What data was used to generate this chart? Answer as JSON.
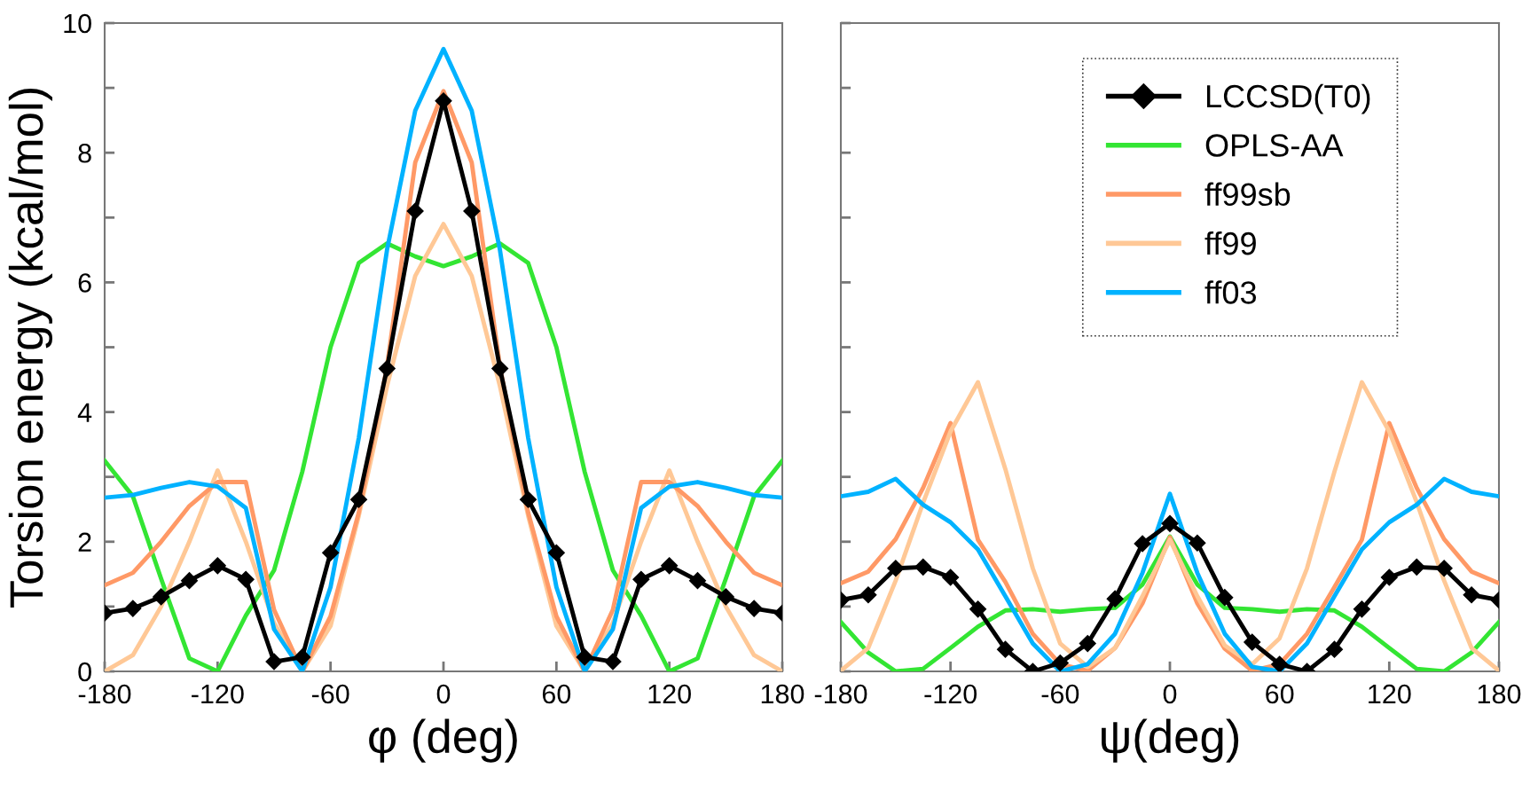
{
  "chart_data": [
    {
      "type": "line",
      "xlabel": "φ (deg)",
      "ylabel": "Torsion energy (kcal/mol)",
      "x": [
        -180,
        -165,
        -150,
        -135,
        -120,
        -105,
        -90,
        -75,
        -60,
        -45,
        -30,
        -15,
        0,
        15,
        30,
        45,
        60,
        75,
        90,
        105,
        120,
        135,
        150,
        165,
        180
      ],
      "xlim": [
        -180,
        180
      ],
      "xticks": [
        -180,
        -120,
        -60,
        0,
        60,
        120,
        180
      ],
      "ylim": [
        0,
        10
      ],
      "yticks": [
        0,
        {
          "value": 1,
          "label": null
        },
        2,
        {
          "value": 3,
          "label": null
        },
        4,
        {
          "value": 5,
          "label": null
        },
        6,
        {
          "value": 7,
          "label": null
        },
        8,
        {
          "value": 9,
          "label": null
        },
        10
      ],
      "grid": false,
      "legend": false,
      "line_style": "solid",
      "series": [
        {
          "color": "#33e533",
          "marker": "none",
          "values": [
            3.25,
            2.7,
            1.43,
            0.2,
            0.0,
            0.86,
            1.56,
            3.08,
            5.0,
            6.3,
            6.6,
            6.4,
            6.25,
            6.4,
            6.6,
            6.3,
            5.0,
            3.08,
            1.56,
            0.86,
            0.0,
            0.2,
            1.43,
            2.7,
            3.25
          ]
        },
        {
          "color": "#ffc896",
          "marker": "none",
          "values": [
            0.0,
            0.25,
            1.0,
            2.0,
            3.1,
            2.0,
            0.75,
            0.0,
            0.7,
            2.4,
            4.4,
            6.1,
            6.9,
            6.1,
            4.4,
            2.4,
            0.7,
            0.0,
            0.75,
            2.0,
            3.1,
            2.0,
            1.0,
            0.25,
            0.0
          ]
        },
        {
          "color": "#ff9966",
          "marker": "none",
          "values": [
            1.33,
            1.52,
            2.0,
            2.55,
            2.92,
            2.92,
            0.95,
            0.0,
            0.85,
            2.45,
            4.7,
            7.85,
            8.95,
            7.85,
            4.7,
            2.45,
            0.85,
            0.0,
            0.95,
            2.92,
            2.92,
            2.55,
            2.0,
            1.52,
            1.33
          ]
        },
        {
          "color": "#00b2ff",
          "marker": "none",
          "values": [
            2.68,
            2.72,
            2.83,
            2.92,
            2.85,
            2.52,
            0.65,
            0.0,
            1.3,
            3.6,
            6.5,
            8.65,
            9.6,
            8.65,
            6.5,
            3.6,
            1.3,
            0.0,
            0.65,
            2.52,
            2.85,
            2.92,
            2.83,
            2.72,
            2.68
          ]
        },
        {
          "color": "#000000",
          "marker": "diamond",
          "values": [
            0.9,
            0.97,
            1.15,
            1.4,
            1.63,
            1.42,
            0.15,
            0.22,
            1.83,
            2.65,
            4.67,
            7.1,
            8.8,
            7.1,
            4.67,
            2.65,
            1.83,
            0.22,
            0.15,
            1.42,
            1.63,
            1.4,
            1.15,
            0.97,
            0.9
          ]
        }
      ]
    },
    {
      "type": "line",
      "xlabel": "ψ(deg)",
      "x": [
        -180,
        -165,
        -150,
        -135,
        -120,
        -105,
        -90,
        -75,
        -60,
        -45,
        -30,
        -15,
        0,
        15,
        30,
        45,
        60,
        75,
        90,
        105,
        120,
        135,
        150,
        165,
        180
      ],
      "xlim": [
        -180,
        180
      ],
      "xticks": [
        -180,
        -120,
        -60,
        0,
        60,
        120,
        180
      ],
      "ylim": [
        0,
        10
      ],
      "yticks": [
        0,
        1,
        2,
        3,
        4,
        5,
        6,
        7,
        8,
        9,
        10
      ],
      "tick_labels": "x",
      "grid": false,
      "legend": "top right",
      "line_style": "solid",
      "series": [
        {
          "name": "LCCSD(T0)",
          "color": "#000000",
          "marker": "diamond",
          "values": [
            1.1,
            1.18,
            1.59,
            1.61,
            1.45,
            0.96,
            0.34,
            0.0,
            0.13,
            0.43,
            1.12,
            1.97,
            2.28,
            1.98,
            1.14,
            0.45,
            0.11,
            0.0,
            0.34,
            0.96,
            1.45,
            1.61,
            1.59,
            1.18,
            1.1
          ]
        },
        {
          "name": "OPLS-AA",
          "color": "#33e533",
          "marker": "none",
          "values": [
            0.76,
            0.29,
            0.0,
            0.04,
            0.36,
            0.69,
            0.94,
            0.96,
            0.92,
            0.96,
            0.98,
            1.34,
            2.08,
            1.34,
            0.98,
            0.96,
            0.92,
            0.96,
            0.94,
            0.69,
            0.36,
            0.04,
            0.0,
            0.29,
            0.76
          ]
        },
        {
          "name": "ff99sb",
          "color": "#ff9966",
          "marker": "none",
          "values": [
            1.36,
            1.54,
            2.04,
            2.83,
            3.83,
            2.03,
            1.38,
            0.58,
            0.11,
            0.01,
            0.36,
            1.05,
            2.07,
            1.05,
            0.35,
            0.01,
            0.11,
            0.58,
            1.3,
            2.03,
            3.83,
            2.83,
            2.04,
            1.54,
            1.36
          ]
        },
        {
          "name": "ff99",
          "color": "#ffc896",
          "marker": "none",
          "values": [
            0.01,
            0.36,
            1.4,
            2.6,
            3.7,
            4.46,
            3.12,
            1.59,
            0.43,
            0.07,
            0.36,
            1.16,
            2.03,
            1.16,
            0.4,
            0.11,
            0.51,
            1.59,
            3.08,
            4.46,
            3.7,
            2.61,
            1.4,
            0.36,
            0.01
          ]
        },
        {
          "name": "ff03",
          "color": "#00b2ff",
          "marker": "none",
          "values": [
            2.7,
            2.77,
            2.97,
            2.57,
            2.3,
            1.88,
            1.16,
            0.43,
            0.0,
            0.11,
            0.58,
            1.52,
            2.74,
            1.52,
            0.58,
            0.07,
            0.0,
            0.43,
            1.16,
            1.88,
            2.3,
            2.57,
            2.97,
            2.77,
            2.7
          ]
        }
      ]
    }
  ]
}
